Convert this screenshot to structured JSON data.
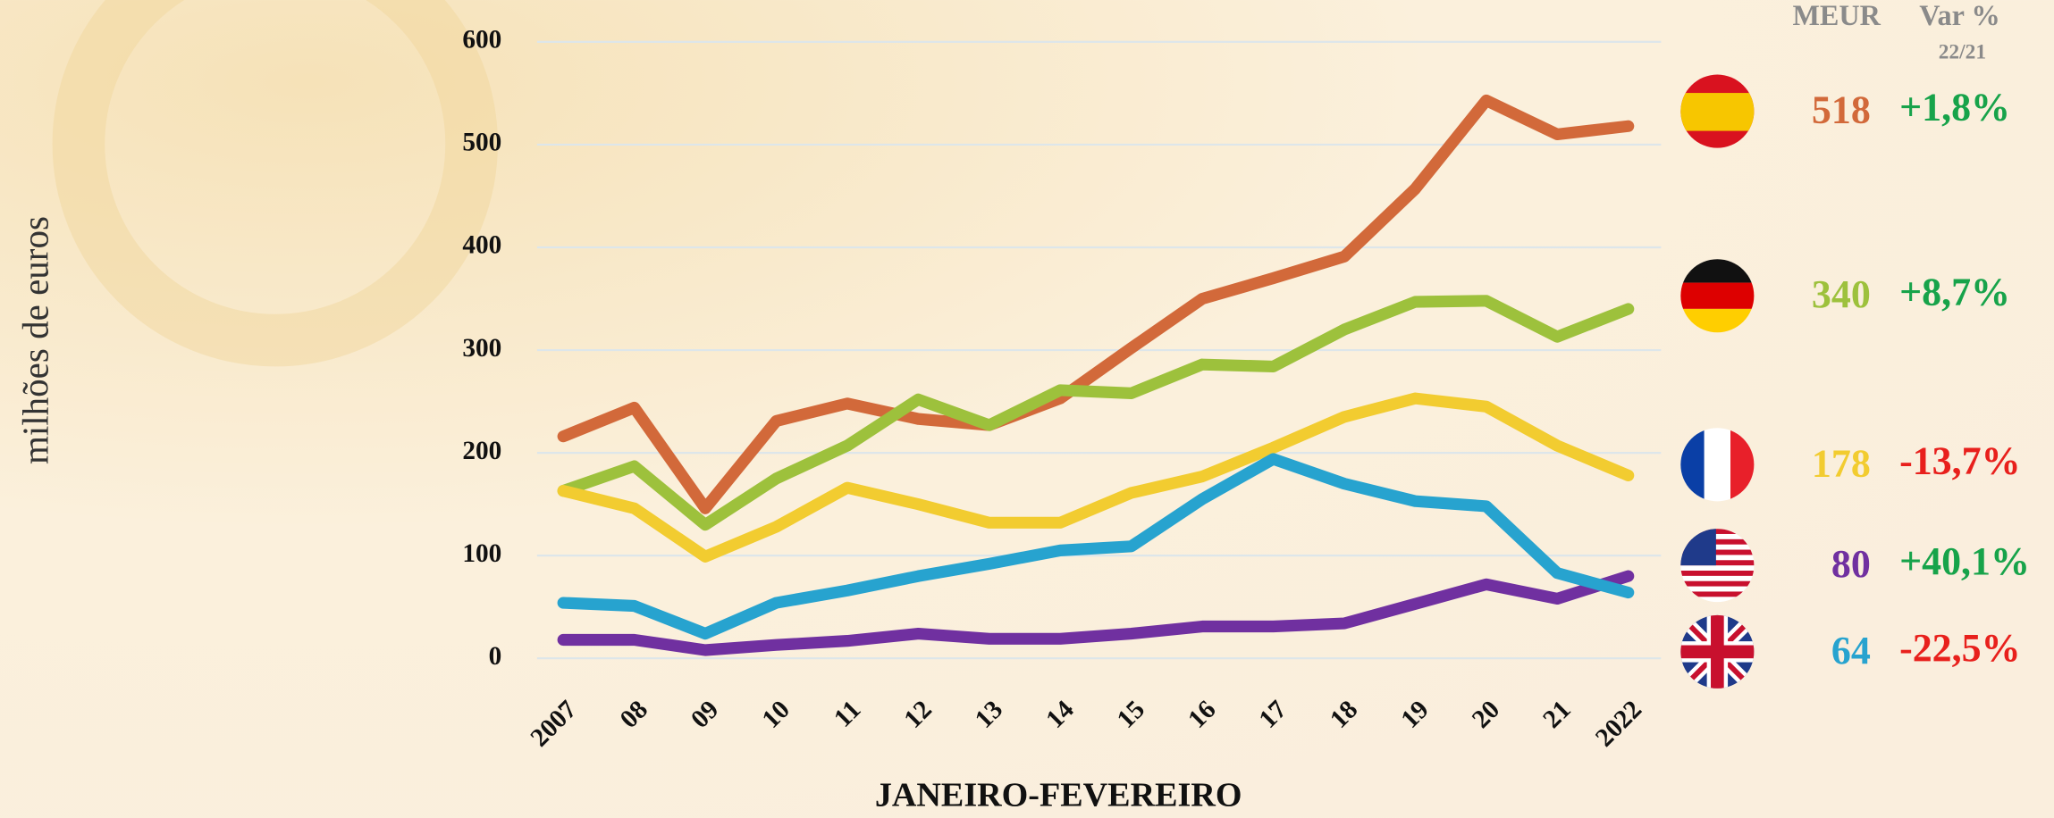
{
  "chart_data": {
    "type": "line",
    "y_label": "milhões de euros",
    "x_label": "JANEIRO-FEVEREIRO",
    "header_value": "MEUR",
    "header_change": "Var %",
    "header_period": "22/21",
    "categories": [
      "2007",
      "08",
      "09",
      "10",
      "11",
      "12",
      "13",
      "14",
      "15",
      "16",
      "17",
      "18",
      "19",
      "20",
      "21",
      "2022"
    ],
    "ylim": [
      0,
      600
    ],
    "yticks": [
      0,
      100,
      200,
      300,
      400,
      500,
      600
    ],
    "grid": true,
    "series": [
      {
        "color": "#d2693a",
        "values": [
          216,
          244,
          146,
          231,
          248,
          233,
          227,
          253,
          302,
          350,
          370,
          391,
          457,
          543,
          510,
          518
        ],
        "latest": 518,
        "change": "+1,8%",
        "change_color": "#17a34a"
      },
      {
        "color": "#9dc13c",
        "values": [
          163,
          187,
          130,
          175,
          207,
          252,
          227,
          261,
          258,
          286,
          284,
          320,
          347,
          348,
          313,
          340
        ],
        "latest": 340,
        "change": "+8,7%",
        "change_color": "#17a34a"
      },
      {
        "color": "#f2cc30",
        "values": [
          163,
          146,
          99,
          128,
          166,
          150,
          132,
          132,
          161,
          177,
          205,
          235,
          253,
          245,
          207,
          178
        ],
        "latest": 178,
        "change": "-13,7%",
        "change_color": "#e8201c"
      },
      {
        "color": "#7030a0",
        "values": [
          18,
          18,
          8,
          13,
          17,
          24,
          19,
          19,
          24,
          31,
          31,
          34,
          53,
          72,
          58,
          80
        ],
        "latest": 80,
        "change": "+40,1%",
        "change_color": "#17a34a"
      },
      {
        "color": "#27a3cf",
        "values": [
          54,
          51,
          24,
          54,
          66,
          80,
          92,
          105,
          109,
          155,
          194,
          170,
          153,
          148,
          83,
          64
        ],
        "latest": 64,
        "change": "-22,5%",
        "change_color": "#e8201c"
      }
    ]
  }
}
